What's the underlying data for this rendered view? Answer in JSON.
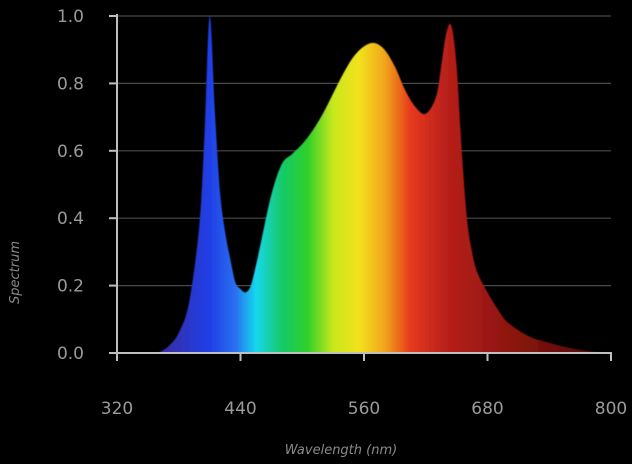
{
  "chart_data": {
    "type": "area",
    "title": "",
    "xlabel": "Wavelength (nm)",
    "ylabel": "Spectrum",
    "xlim": [
      320,
      800
    ],
    "ylim": [
      0,
      1.0
    ],
    "x_ticks": [
      320,
      440,
      560,
      680,
      800
    ],
    "x_tick_labels": [
      "320",
      "440",
      "560",
      "680",
      "800"
    ],
    "y_ticks": [
      0.0,
      0.2,
      0.4,
      0.6,
      0.8,
      1.0
    ],
    "y_tick_labels": [
      "0.0",
      "0.2",
      "0.4",
      "0.6",
      "0.8",
      "1.0"
    ],
    "grid": "horizontal",
    "background_color": "#000000",
    "series": [
      {
        "x": [
          360,
          370,
          380,
          390,
          400,
          405,
          410,
          415,
          420,
          425,
          430,
          435,
          440,
          445,
          450,
          455,
          460,
          470,
          480,
          490,
          500,
          510,
          520,
          530,
          540,
          550,
          560,
          570,
          580,
          590,
          600,
          610,
          620,
          630,
          635,
          640,
          645,
          650,
          655,
          660,
          665,
          670,
          680,
          690,
          700,
          720,
          740,
          760,
          780,
          800
        ],
        "y": [
          0.0,
          0.02,
          0.06,
          0.15,
          0.38,
          0.65,
          1.0,
          0.72,
          0.48,
          0.36,
          0.28,
          0.21,
          0.19,
          0.18,
          0.2,
          0.26,
          0.33,
          0.47,
          0.56,
          0.59,
          0.62,
          0.66,
          0.71,
          0.77,
          0.83,
          0.88,
          0.91,
          0.92,
          0.9,
          0.85,
          0.78,
          0.73,
          0.71,
          0.76,
          0.85,
          0.95,
          0.97,
          0.85,
          0.6,
          0.4,
          0.3,
          0.24,
          0.18,
          0.13,
          0.09,
          0.05,
          0.03,
          0.015,
          0.005,
          0.0
        ]
      }
    ],
    "colors": {
      "axis": "#bfbfbf",
      "grid": "#4a4a4a",
      "text": "#9a9a9a"
    },
    "gradient": [
      {
        "x": 360,
        "color": "#3b2a9e"
      },
      {
        "x": 410,
        "color": "#1f3fe6"
      },
      {
        "x": 435,
        "color": "#2a6ff0"
      },
      {
        "x": 455,
        "color": "#14d8ee"
      },
      {
        "x": 480,
        "color": "#14c96a"
      },
      {
        "x": 505,
        "color": "#2ed02a"
      },
      {
        "x": 530,
        "color": "#c8e81e"
      },
      {
        "x": 555,
        "color": "#f2e21a"
      },
      {
        "x": 580,
        "color": "#f2a61a"
      },
      {
        "x": 605,
        "color": "#e63a1e"
      },
      {
        "x": 640,
        "color": "#b8201a"
      },
      {
        "x": 700,
        "color": "#8e1510"
      },
      {
        "x": 800,
        "color": "#4a0a08"
      }
    ]
  }
}
